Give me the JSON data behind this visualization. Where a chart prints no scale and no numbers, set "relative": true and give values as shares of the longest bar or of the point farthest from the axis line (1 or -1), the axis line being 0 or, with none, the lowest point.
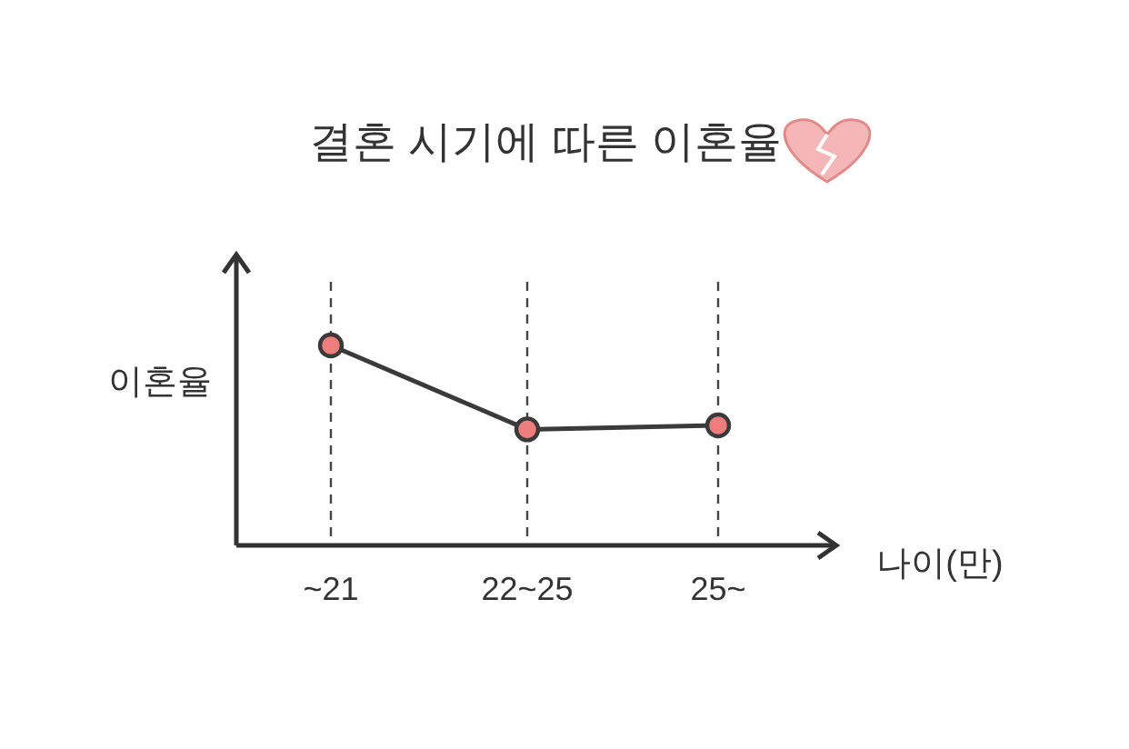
{
  "chart_data": {
    "type": "line",
    "title": "결혼 시기에 따른 이혼율",
    "ylabel": "이혼율",
    "xlabel": "나이(만)",
    "categories": [
      "~21",
      "22~25",
      "25~"
    ],
    "relative": true,
    "grid": "x",
    "marker": "circle",
    "line_style": "solid",
    "series": [
      {
        "color": "#3a3a3a",
        "values": [
          1,
          0.58,
          0.6
        ]
      }
    ]
  }
}
